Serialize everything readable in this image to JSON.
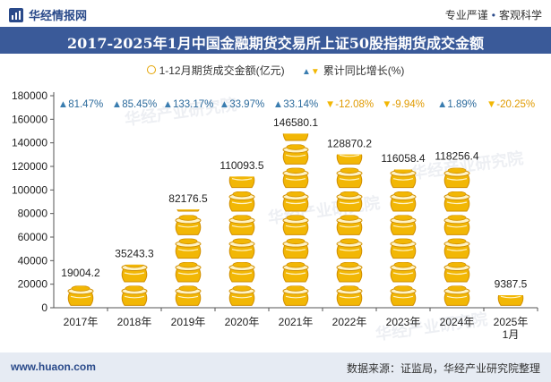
{
  "header": {
    "brand": "华经情报网",
    "tagline_left": "专业严谨",
    "tagline_right": "客观科学"
  },
  "chart_data": {
    "type": "bar",
    "title": "2017-2025年1月中国金融期货交易所上证50股指期货成交金额",
    "categories": [
      "2017年",
      "2018年",
      "2019年",
      "2020年",
      "2021年",
      "2022年",
      "2023年",
      "2024年",
      "2025年\n1月"
    ],
    "series": [
      {
        "name": "1-12月期货成交金额(亿元)",
        "values": [
          19004.2,
          35243.3,
          82176.5,
          110093.5,
          146580.1,
          128870.2,
          116058.4,
          118256.4,
          9387.5
        ],
        "value_labels": [
          "19004.2",
          "35243.3",
          "82176.5",
          "110093.5",
          "146580.1",
          "128870.2",
          "116058.4",
          "118256.4",
          "9387.5"
        ]
      },
      {
        "name": "累计同比增长(%)",
        "values": [
          81.47,
          85.45,
          133.17,
          33.97,
          33.14,
          -12.08,
          -9.94,
          1.89,
          -20.25
        ],
        "value_labels": [
          "81.47%",
          "85.45%",
          "133.17%",
          "33.97%",
          "33.14%",
          "-12.08%",
          "-9.94%",
          "1.89%",
          "-20.25%"
        ]
      }
    ],
    "ylim": [
      0,
      180000
    ],
    "yticks": [
      0,
      20000,
      40000,
      60000,
      80000,
      100000,
      120000,
      140000,
      160000,
      180000
    ],
    "xlabel": "",
    "ylabel": "",
    "legend_position": "top-center",
    "grid": false,
    "colors": {
      "coin": "#f2b705",
      "coin_dark": "#d18f00",
      "up": "#3a7db0",
      "down": "#f2b705"
    }
  },
  "watermark": "华经产业研究院",
  "watermark_url": "www.huaon.com",
  "footer": {
    "website": "www.huaon.com",
    "source": "数据来源：证监局，华经产业研究院整理"
  }
}
